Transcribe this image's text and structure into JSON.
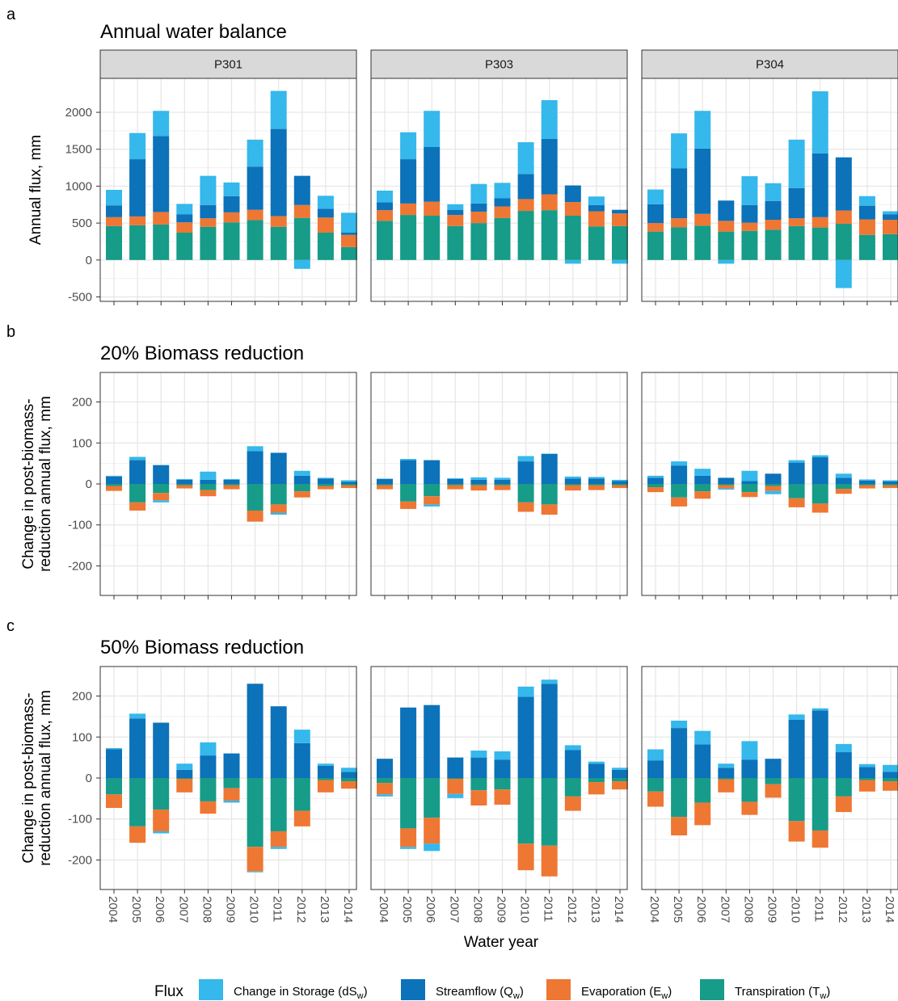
{
  "chart_data": {
    "type": "bar",
    "layout": "faceted stacked bar chart (3 rows x 3 columns)",
    "x": [
      "2004",
      "2005",
      "2006",
      "2007",
      "2008",
      "2009",
      "2010",
      "2011",
      "2012",
      "2013",
      "2014"
    ],
    "xlabel": "Water year",
    "facets": [
      "P301",
      "P303",
      "P304"
    ],
    "grid": "on",
    "legend": {
      "title": "Flux",
      "position": "bottom",
      "entries": [
        {
          "key": "dS",
          "label": "Change in Storage (dS",
          "sub": "w",
          "tail": ")",
          "color": "#35B8EB"
        },
        {
          "key": "Q",
          "label": "Streamflow (Q",
          "sub": "w",
          "tail": ")",
          "color": "#0C72B9"
        },
        {
          "key": "E",
          "label": "Evaporation (E",
          "sub": "w",
          "tail": ")",
          "color": "#EE7733"
        },
        {
          "key": "T",
          "label": "Transpiration (T",
          "sub": "w",
          "tail": ")",
          "color": "#169C88"
        }
      ]
    },
    "rows": [
      {
        "tag": "a",
        "title": "Annual water balance",
        "ylabel": [
          "Annual flux, mm"
        ],
        "ylim": [
          -560,
          2460
        ],
        "yticks": [
          -500,
          0,
          500,
          1000,
          1500,
          2000
        ],
        "panels": [
          {
            "facet": "P301",
            "stacks": [
              {
                "T": 460,
                "E": 120,
                "Q": 160,
                "dS": 210
              },
              {
                "T": 470,
                "E": 120,
                "Q": 775,
                "dS": 355
              },
              {
                "T": 480,
                "E": 170,
                "Q": 1030,
                "dS": 340
              },
              {
                "T": 370,
                "E": 140,
                "Q": 110,
                "dS": 140
              },
              {
                "T": 450,
                "E": 115,
                "Q": 180,
                "dS": 395
              },
              {
                "T": 510,
                "E": 135,
                "Q": 220,
                "dS": 185
              },
              {
                "T": 540,
                "E": 140,
                "Q": 585,
                "dS": 365
              },
              {
                "T": 450,
                "E": 145,
                "Q": 1180,
                "dS": 515
              },
              {
                "T": 570,
                "E": 175,
                "Q": 395,
                "dS": -120
              },
              {
                "T": 370,
                "E": 205,
                "Q": 120,
                "dS": 175
              },
              {
                "T": 175,
                "E": 165,
                "Q": 30,
                "dS": 270
              }
            ]
          },
          {
            "facet": "P303",
            "stacks": [
              {
                "T": 530,
                "E": 145,
                "Q": 105,
                "dS": 160
              },
              {
                "T": 610,
                "E": 155,
                "Q": 600,
                "dS": 365
              },
              {
                "T": 600,
                "E": 190,
                "Q": 740,
                "dS": 490
              },
              {
                "T": 460,
                "E": 150,
                "Q": 70,
                "dS": 75
              },
              {
                "T": 500,
                "E": 155,
                "Q": 110,
                "dS": 265
              },
              {
                "T": 570,
                "E": 155,
                "Q": 110,
                "dS": 210
              },
              {
                "T": 665,
                "E": 160,
                "Q": 340,
                "dS": 430
              },
              {
                "T": 675,
                "E": 215,
                "Q": 750,
                "dS": 525
              },
              {
                "T": 600,
                "E": 185,
                "Q": 225,
                "dS": -50
              },
              {
                "T": 455,
                "E": 205,
                "Q": 85,
                "dS": 115
              },
              {
                "T": 460,
                "E": 170,
                "Q": 50,
                "dS": -50
              }
            ]
          },
          {
            "facet": "P304",
            "stacks": [
              {
                "T": 385,
                "E": 115,
                "Q": 255,
                "dS": 200
              },
              {
                "T": 445,
                "E": 120,
                "Q": 675,
                "dS": 475
              },
              {
                "T": 465,
                "E": 160,
                "Q": 885,
                "dS": 510
              },
              {
                "T": 385,
                "E": 145,
                "Q": 275,
                "dS": -50
              },
              {
                "T": 395,
                "E": 110,
                "Q": 240,
                "dS": 390
              },
              {
                "T": 410,
                "E": 135,
                "Q": 255,
                "dS": 240
              },
              {
                "T": 460,
                "E": 105,
                "Q": 410,
                "dS": 655
              },
              {
                "T": 440,
                "E": 140,
                "Q": 865,
                "dS": 840
              },
              {
                "T": 490,
                "E": 180,
                "Q": 720,
                "dS": -380
              },
              {
                "T": 340,
                "E": 210,
                "Q": 185,
                "dS": 130
              },
              {
                "T": 350,
                "E": 195,
                "Q": 75,
                "dS": 40
              }
            ]
          }
        ]
      },
      {
        "tag": "b",
        "title": "20% Biomass reduction",
        "ylabel": [
          "Change in post-biomass-",
          "reduction annual flux, mm"
        ],
        "ylim": [
          -272,
          272
        ],
        "yticks": [
          -200,
          -100,
          0,
          100,
          200
        ],
        "panels": [
          {
            "facet": "P301",
            "stacks": [
              {
                "T": -5,
                "E": -12,
                "Q": 18,
                "dS": 2
              },
              {
                "T": -45,
                "E": -20,
                "Q": 58,
                "dS": 8
              },
              {
                "T": -22,
                "E": -18,
                "Q": 46,
                "dS": -5
              },
              {
                "T": -3,
                "E": -8,
                "Q": 10,
                "dS": 2
              },
              {
                "T": -15,
                "E": -15,
                "Q": 10,
                "dS": 20
              },
              {
                "T": -3,
                "E": -10,
                "Q": 10,
                "dS": 2
              },
              {
                "T": -65,
                "E": -27,
                "Q": 80,
                "dS": 12
              },
              {
                "T": -50,
                "E": -20,
                "Q": 76,
                "dS": -5
              },
              {
                "T": -18,
                "E": -15,
                "Q": 20,
                "dS": 12
              },
              {
                "T": -5,
                "E": -8,
                "Q": 13,
                "dS": 2
              },
              {
                "T": -3,
                "E": -7,
                "Q": 5,
                "dS": 4
              }
            ]
          },
          {
            "facet": "P303",
            "stacks": [
              {
                "T": -3,
                "E": -10,
                "Q": 12,
                "dS": 1
              },
              {
                "T": -43,
                "E": -18,
                "Q": 58,
                "dS": 3
              },
              {
                "T": -30,
                "E": -20,
                "Q": 58,
                "dS": -5
              },
              {
                "T": -3,
                "E": -10,
                "Q": 12,
                "dS": 2
              },
              {
                "T": -3,
                "E": -13,
                "Q": 10,
                "dS": 6
              },
              {
                "T": -3,
                "E": -12,
                "Q": 10,
                "dS": 5
              },
              {
                "T": -45,
                "E": -23,
                "Q": 55,
                "dS": 13
              },
              {
                "T": -50,
                "E": -25,
                "Q": 73,
                "dS": 1
              },
              {
                "T": -3,
                "E": -13,
                "Q": 13,
                "dS": 5
              },
              {
                "T": -3,
                "E": -12,
                "Q": 13,
                "dS": 4
              },
              {
                "T": -3,
                "E": -7,
                "Q": 7,
                "dS": 3
              }
            ]
          },
          {
            "facet": "P304",
            "stacks": [
              {
                "T": -8,
                "E": -12,
                "Q": 15,
                "dS": 5
              },
              {
                "T": -33,
                "E": -22,
                "Q": 45,
                "dS": 10
              },
              {
                "T": -18,
                "E": -18,
                "Q": 20,
                "dS": 17
              },
              {
                "T": -3,
                "E": -8,
                "Q": 15,
                "dS": -3
              },
              {
                "T": -20,
                "E": -12,
                "Q": 7,
                "dS": 25
              },
              {
                "T": -5,
                "E": -12,
                "Q": 25,
                "dS": -8
              },
              {
                "T": -35,
                "E": -22,
                "Q": 52,
                "dS": 6
              },
              {
                "T": -48,
                "E": -22,
                "Q": 65,
                "dS": 5
              },
              {
                "T": -12,
                "E": -12,
                "Q": 15,
                "dS": 10
              },
              {
                "T": -3,
                "E": -8,
                "Q": 8,
                "dS": 3
              },
              {
                "T": -3,
                "E": -7,
                "Q": 6,
                "dS": 3
              }
            ]
          }
        ]
      },
      {
        "tag": "c",
        "title": "50% Biomass reduction",
        "ylabel": [
          "Change in post-biomass-",
          "reduction annual flux, mm"
        ],
        "ylim": [
          -272,
          272
        ],
        "yticks": [
          -200,
          -100,
          0,
          100,
          200
        ],
        "panels": [
          {
            "facet": "P301",
            "stacks": [
              {
                "T": -40,
                "E": -33,
                "Q": 70,
                "dS": 3
              },
              {
                "T": -118,
                "E": -40,
                "Q": 145,
                "dS": 12
              },
              {
                "T": -77,
                "E": -53,
                "Q": 135,
                "dS": -5
              },
              {
                "T": -2,
                "E": -33,
                "Q": 20,
                "dS": 15
              },
              {
                "T": -57,
                "E": -30,
                "Q": 55,
                "dS": 32
              },
              {
                "T": -25,
                "E": -30,
                "Q": 60,
                "dS": -5
              },
              {
                "T": -168,
                "E": -60,
                "Q": 230,
                "dS": -2
              },
              {
                "T": -130,
                "E": -38,
                "Q": 175,
                "dS": -5
              },
              {
                "T": -80,
                "E": -38,
                "Q": 85,
                "dS": 33
              },
              {
                "T": -5,
                "E": -30,
                "Q": 30,
                "dS": 5
              },
              {
                "T": -8,
                "E": -18,
                "Q": 15,
                "dS": 10
              }
            ]
          },
          {
            "facet": "P303",
            "stacks": [
              {
                "T": -12,
                "E": -28,
                "Q": 47,
                "dS": -5
              },
              {
                "T": -123,
                "E": -45,
                "Q": 172,
                "dS": -5
              },
              {
                "T": -97,
                "E": -63,
                "Q": 178,
                "dS": -18
              },
              {
                "T": -2,
                "E": -37,
                "Q": 50,
                "dS": -10
              },
              {
                "T": -30,
                "E": -37,
                "Q": 50,
                "dS": 17
              },
              {
                "T": -28,
                "E": -37,
                "Q": 45,
                "dS": 20
              },
              {
                "T": -160,
                "E": -65,
                "Q": 198,
                "dS": 25
              },
              {
                "T": -165,
                "E": -75,
                "Q": 230,
                "dS": 10
              },
              {
                "T": -45,
                "E": -35,
                "Q": 68,
                "dS": 12
              },
              {
                "T": -10,
                "E": -30,
                "Q": 35,
                "dS": 5
              },
              {
                "T": -8,
                "E": -20,
                "Q": 20,
                "dS": 5
              }
            ]
          },
          {
            "facet": "P304",
            "stacks": [
              {
                "T": -33,
                "E": -37,
                "Q": 43,
                "dS": 27
              },
              {
                "T": -95,
                "E": -45,
                "Q": 122,
                "dS": 18
              },
              {
                "T": -60,
                "E": -55,
                "Q": 82,
                "dS": 33
              },
              {
                "T": -3,
                "E": -32,
                "Q": 25,
                "dS": 10
              },
              {
                "T": -58,
                "E": -32,
                "Q": 45,
                "dS": 45
              },
              {
                "T": -15,
                "E": -33,
                "Q": 47,
                "dS": 0
              },
              {
                "T": -105,
                "E": -50,
                "Q": 142,
                "dS": 13
              },
              {
                "T": -128,
                "E": -42,
                "Q": 165,
                "dS": 5
              },
              {
                "T": -45,
                "E": -38,
                "Q": 63,
                "dS": 20
              },
              {
                "T": -5,
                "E": -28,
                "Q": 27,
                "dS": 7
              },
              {
                "T": -8,
                "E": -23,
                "Q": 15,
                "dS": 17
              }
            ]
          }
        ]
      }
    ]
  }
}
